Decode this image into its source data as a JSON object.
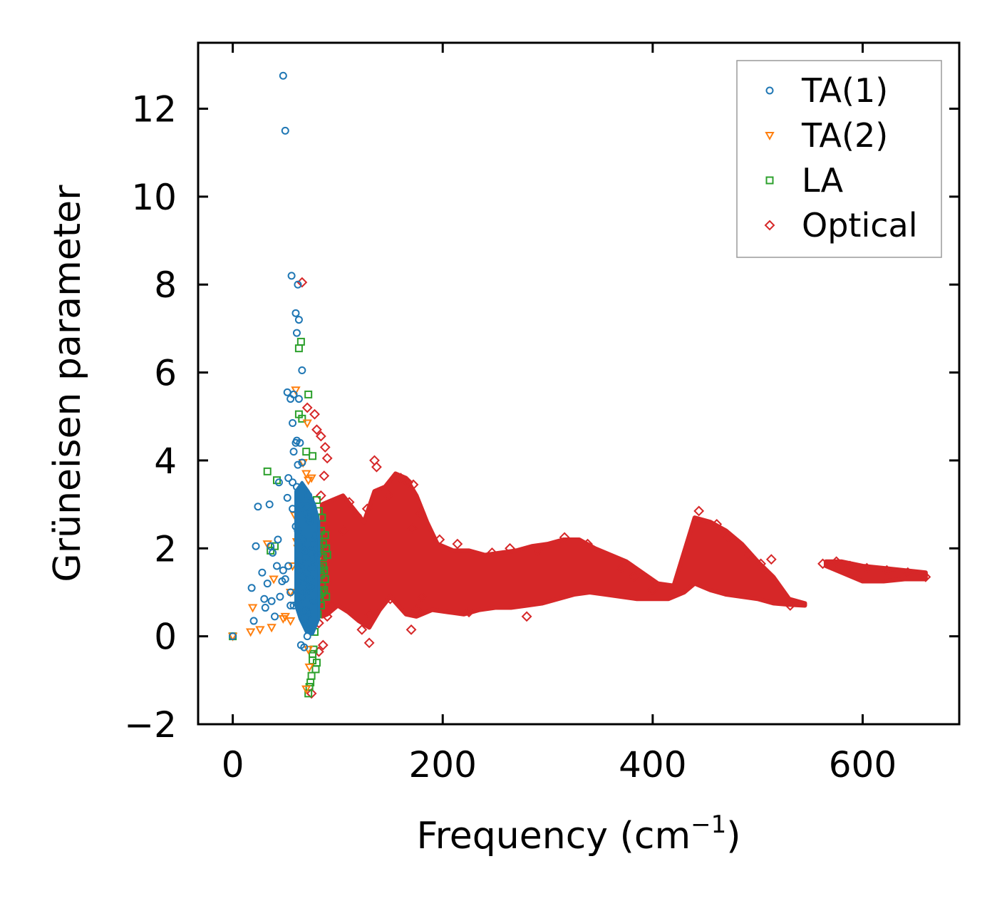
{
  "chart_data": {
    "type": "scatter",
    "title": "",
    "xlabel": "Frequency (cm",
    "xlabel_sup": "−1",
    "xlabel_end": ")",
    "ylabel": "Grüneisen parameter",
    "xlim": [
      -33,
      692
    ],
    "ylim": [
      -2.0,
      13.5
    ],
    "xticks": [
      0,
      200,
      400,
      600
    ],
    "xtick_labels": [
      "0",
      "200",
      "400",
      "600"
    ],
    "yticks": [
      -2,
      0,
      2,
      4,
      6,
      8,
      10,
      12
    ],
    "ytick_labels": [
      "−2",
      "0",
      "2",
      "4",
      "6",
      "8",
      "10",
      "12"
    ],
    "legend_position": "top-right",
    "series": [
      {
        "name": "TA(1)",
        "marker": "circle",
        "color": "#1f77b4",
        "x": [
          0,
          48,
          50,
          56,
          60,
          62,
          61,
          63,
          66,
          52,
          55,
          58,
          63,
          57,
          60,
          61,
          64,
          58,
          62,
          66,
          53,
          57,
          24,
          35,
          43,
          36,
          44,
          28,
          38,
          33,
          52,
          61,
          57,
          64,
          69,
          72,
          18,
          20,
          31,
          37,
          40,
          45,
          48,
          50,
          53,
          55,
          58,
          62,
          65,
          68,
          70,
          72,
          74,
          76,
          78,
          60,
          64,
          67,
          70,
          73,
          66,
          68,
          71,
          74,
          77,
          63,
          66,
          69,
          72,
          75,
          78,
          65,
          68,
          71,
          69,
          72,
          70,
          73,
          67,
          71,
          75,
          80,
          22,
          42,
          30,
          47,
          55,
          62,
          74,
          76,
          71,
          69,
          68
        ],
        "y": [
          0.0,
          12.75,
          11.5,
          8.2,
          7.35,
          8.0,
          6.9,
          7.2,
          6.05,
          5.55,
          5.4,
          5.5,
          5.4,
          4.85,
          4.4,
          4.45,
          4.4,
          4.2,
          3.9,
          3.95,
          3.6,
          3.5,
          2.95,
          3.0,
          2.2,
          2.05,
          3.5,
          1.45,
          1.9,
          1.2,
          3.15,
          3.4,
          2.9,
          3.0,
          2.8,
          3.2,
          1.1,
          0.35,
          0.65,
          0.8,
          0.45,
          0.9,
          1.5,
          1.3,
          1.6,
          1.0,
          0.7,
          0.75,
          1.6,
          1.2,
          0.6,
          0.5,
          1.1,
          2.1,
          1.7,
          2.5,
          1.5,
          2.2,
          1.8,
          2.6,
          0.9,
          0.4,
          0.25,
          1.3,
          0.8,
          1.7,
          2.0,
          1.0,
          0.55,
          1.9,
          2.3,
          -0.2,
          -0.25,
          0.0,
          0.3,
          0.15,
          1.45,
          2.7,
          1.35,
          0.95,
          1.55,
          1.85,
          2.05,
          1.6,
          0.85,
          1.25,
          0.7,
          2.4,
          1.15,
          1.75,
          2.95,
          1.95,
          0.6
        ]
      },
      {
        "name": "TA(2)",
        "marker": "triangle-down",
        "color": "#ff7f0e",
        "x": [
          0,
          17,
          19,
          26,
          33,
          37,
          39,
          48,
          50,
          55,
          57,
          60,
          61,
          64,
          67,
          70,
          71,
          72,
          73,
          75,
          77,
          65,
          68,
          71,
          74,
          76,
          78,
          80,
          69,
          72,
          70,
          73,
          66,
          69,
          75,
          62,
          55,
          59,
          73,
          71,
          74
        ],
        "y": [
          0.0,
          0.1,
          0.65,
          0.15,
          2.1,
          0.2,
          1.3,
          0.4,
          0.45,
          1.0,
          1.6,
          5.6,
          2.15,
          2.5,
          3.95,
          3.7,
          4.85,
          3.55,
          2.8,
          1.9,
          1.5,
          3.3,
          2.45,
          1.2,
          0.85,
          2.05,
          0.55,
          1.7,
          0.3,
          -0.3,
          -1.2,
          -0.7,
          1.85,
          2.6,
          3.6,
          2.0,
          0.35,
          2.75,
          0.65,
          1.45,
          2.25
        ]
      },
      {
        "name": "LA",
        "marker": "square",
        "color": "#2ca02c",
        "x": [
          0,
          33,
          36,
          40,
          42,
          63,
          65,
          72,
          63,
          66,
          70,
          76,
          80,
          82,
          85,
          88,
          90,
          89,
          84,
          86,
          87,
          78,
          80,
          82,
          84,
          86,
          73,
          75,
          76,
          77,
          79,
          80,
          72,
          74,
          76,
          78,
          81,
          83,
          85,
          87,
          89,
          78,
          80,
          82,
          84,
          86,
          88,
          77,
          79,
          81,
          83,
          85
        ],
        "y": [
          0.0,
          3.75,
          1.95,
          2.05,
          3.55,
          6.55,
          6.7,
          5.5,
          5.05,
          4.95,
          4.2,
          4.1,
          3.1,
          2.85,
          2.7,
          2.3,
          1.85,
          0.9,
          1.4,
          1.6,
          1.05,
          1.25,
          0.8,
          0.95,
          0.7,
          1.8,
          -1.15,
          -0.9,
          -0.55,
          -0.3,
          -0.75,
          -0.6,
          -1.3,
          -1.05,
          -0.4,
          0.1,
          0.5,
          0.85,
          1.15,
          1.5,
          2.0,
          1.7,
          1.95,
          2.15,
          2.4,
          2.1,
          1.3,
          2.5,
          2.6,
          1.9,
          1.55,
          1.0
        ]
      },
      {
        "name": "Optical",
        "marker": "diamond",
        "color": "#d62728",
        "x": [
          66,
          71,
          78,
          84,
          88,
          90,
          80,
          87,
          84,
          88,
          82,
          90,
          86,
          135,
          137,
          148,
          160,
          167,
          172,
          179,
          170,
          123,
          130,
          105,
          111,
          118,
          128,
          171,
          197,
          214,
          247,
          264,
          290,
          316,
          338,
          370,
          382,
          400,
          444,
          461,
          472,
          490,
          503,
          513,
          531,
          562,
          575,
          588,
          604,
          623,
          643,
          660,
          75,
          82,
          95,
          130,
          150,
          175,
          180,
          225,
          280
        ],
        "y": [
          8.05,
          5.2,
          5.05,
          4.55,
          4.3,
          4.05,
          4.7,
          3.65,
          3.2,
          1.25,
          0.3,
          0.45,
          -0.2,
          4.0,
          3.85,
          3.2,
          3.6,
          3.5,
          3.45,
          2.8,
          0.15,
          0.15,
          -0.15,
          2.4,
          3.05,
          2.75,
          2.9,
          2.45,
          2.2,
          2.1,
          1.9,
          2.0,
          1.95,
          2.25,
          2.1,
          1.55,
          1.35,
          1.05,
          2.85,
          2.55,
          2.25,
          1.85,
          1.65,
          1.75,
          0.7,
          1.65,
          1.7,
          1.6,
          1.55,
          1.5,
          1.45,
          1.35,
          -1.3,
          -0.35,
          0.7,
          0.5,
          0.85,
          0.6,
          0.9,
          0.55,
          0.45
        ]
      }
    ],
    "dense_region": {
      "series": "Optical",
      "upper_envelope": [
        [
          85,
          3.0
        ],
        [
          95,
          3.1
        ],
        [
          105,
          3.2
        ],
        [
          115,
          2.9
        ],
        [
          125,
          2.6
        ],
        [
          135,
          3.3
        ],
        [
          145,
          3.4
        ],
        [
          155,
          3.7
        ],
        [
          165,
          3.6
        ],
        [
          175,
          3.2
        ],
        [
          185,
          2.6
        ],
        [
          195,
          2.1
        ],
        [
          210,
          1.95
        ],
        [
          225,
          1.95
        ],
        [
          240,
          1.85
        ],
        [
          255,
          1.9
        ],
        [
          270,
          1.95
        ],
        [
          285,
          2.05
        ],
        [
          300,
          2.1
        ],
        [
          315,
          2.2
        ],
        [
          330,
          2.2
        ],
        [
          345,
          2.0
        ],
        [
          360,
          1.85
        ],
        [
          375,
          1.7
        ],
        [
          390,
          1.45
        ],
        [
          405,
          1.2
        ],
        [
          420,
          1.15
        ],
        [
          440,
          2.7
        ],
        [
          455,
          2.6
        ],
        [
          470,
          2.4
        ],
        [
          485,
          2.1
        ],
        [
          500,
          1.7
        ],
        [
          515,
          1.35
        ],
        [
          530,
          0.85
        ],
        [
          545,
          0.75
        ]
      ],
      "lower_envelope": [
        [
          545,
          0.7
        ],
        [
          530,
          0.72
        ],
        [
          515,
          0.75
        ],
        [
          500,
          0.85
        ],
        [
          485,
          0.9
        ],
        [
          470,
          0.95
        ],
        [
          455,
          1.05
        ],
        [
          440,
          1.2
        ],
        [
          430,
          1.0
        ],
        [
          415,
          0.85
        ],
        [
          400,
          0.85
        ],
        [
          385,
          0.85
        ],
        [
          370,
          0.9
        ],
        [
          355,
          0.95
        ],
        [
          340,
          1.0
        ],
        [
          325,
          0.95
        ],
        [
          310,
          0.85
        ],
        [
          295,
          0.75
        ],
        [
          280,
          0.7
        ],
        [
          265,
          0.65
        ],
        [
          250,
          0.65
        ],
        [
          235,
          0.6
        ],
        [
          220,
          0.5
        ],
        [
          205,
          0.55
        ],
        [
          190,
          0.6
        ],
        [
          175,
          0.45
        ],
        [
          165,
          0.5
        ],
        [
          150,
          0.9
        ],
        [
          140,
          0.6
        ],
        [
          130,
          0.2
        ],
        [
          120,
          0.35
        ],
        [
          110,
          0.55
        ],
        [
          100,
          0.7
        ],
        [
          90,
          0.5
        ],
        [
          85,
          0.45
        ]
      ],
      "tail_upper": [
        [
          565,
          1.7
        ],
        [
          580,
          1.7
        ],
        [
          600,
          1.6
        ],
        [
          620,
          1.55
        ],
        [
          640,
          1.5
        ],
        [
          660,
          1.45
        ]
      ],
      "tail_lower": [
        [
          660,
          1.3
        ],
        [
          640,
          1.3
        ],
        [
          620,
          1.25
        ],
        [
          600,
          1.25
        ],
        [
          580,
          1.45
        ],
        [
          565,
          1.6
        ]
      ]
    },
    "dense_acoustic": {
      "series": "TA(1)",
      "upper_envelope": [
        [
          60,
          3.3
        ],
        [
          66,
          3.5
        ],
        [
          72,
          3.3
        ],
        [
          78,
          3.0
        ],
        [
          82,
          2.6
        ]
      ],
      "lower_envelope": [
        [
          82,
          0.4
        ],
        [
          76,
          0.05
        ],
        [
          70,
          0.1
        ],
        [
          64,
          0.4
        ],
        [
          60,
          0.7
        ]
      ]
    }
  }
}
